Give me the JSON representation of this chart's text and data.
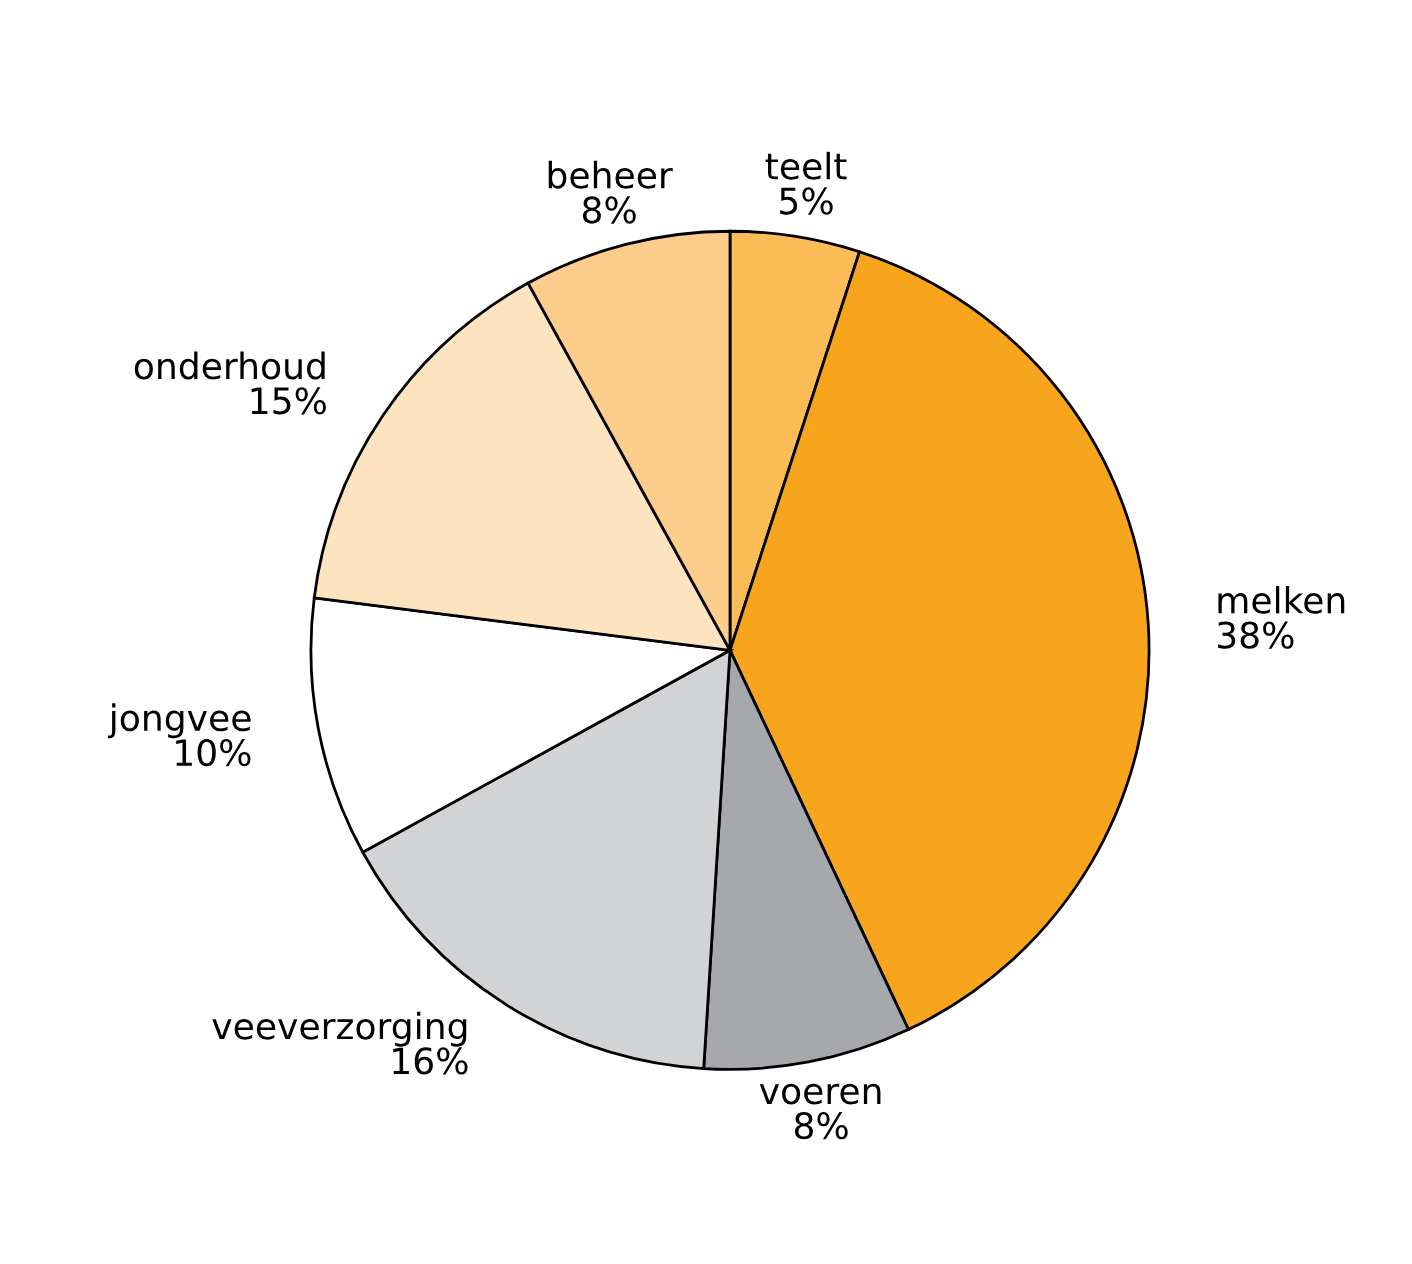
{
  "chart_data": {
    "type": "pie",
    "categories": [
      "teelt",
      "melken",
      "voeren",
      "veeverzorging",
      "jongvee",
      "onderhoud",
      "beheer"
    ],
    "values": [
      5,
      38,
      8,
      16,
      10,
      15,
      8
    ],
    "value_labels": [
      "5%",
      "38%",
      "8%",
      "16%",
      "10%",
      "15%",
      "8%"
    ],
    "colors": [
      "#fbbb55",
      "#f8a51e",
      "#a6a8ab",
      "#d2d3d5",
      "#ffffff",
      "#fee3c0",
      "#fdcd8c"
    ]
  }
}
